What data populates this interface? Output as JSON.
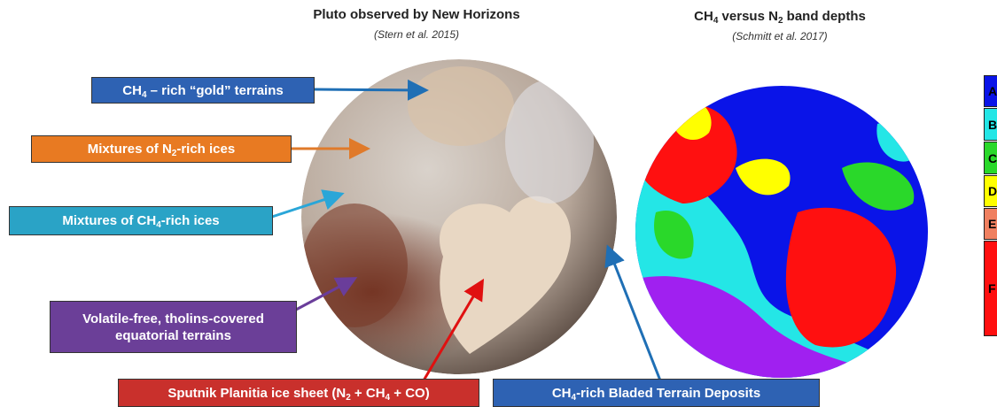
{
  "titles": {
    "left": {
      "title": "Pluto observed by New Horizons",
      "source": "(Stern et al. 2015)"
    },
    "right": {
      "title": [
        "CH",
        "4",
        " versus N",
        "2",
        " band depths"
      ],
      "source": "(Schmitt et al. 2017)"
    }
  },
  "labels": [
    {
      "text": [
        "CH",
        "4",
        " – rich “gold” terrains"
      ]
    },
    {
      "text": [
        "Mixtures of N",
        "2",
        "-rich ices"
      ]
    },
    {
      "text": [
        "Mixtures of CH",
        "4",
        "-rich ices"
      ]
    },
    {
      "text": [
        "Volatile-free, tholins-covered",
        "equatorial terrains"
      ]
    },
    {
      "text": [
        "Sputnik Planitia ice sheet (N",
        "2",
        " + CH",
        "4",
        " + CO)"
      ]
    },
    {
      "text": [
        "CH",
        "4",
        "-rich Bladed Terrain Deposits"
      ]
    }
  ],
  "legend": [
    "A",
    "B",
    "C",
    "D",
    "E",
    "F"
  ]
}
